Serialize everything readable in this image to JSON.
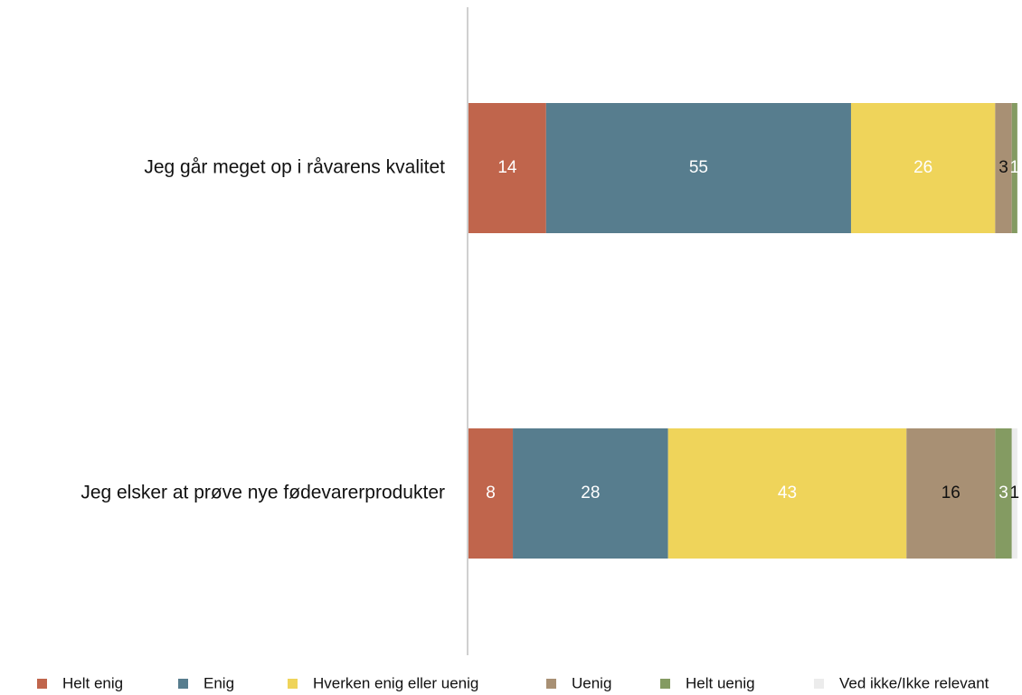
{
  "chart_data": {
    "type": "stacked_barh",
    "categories": [
      "Jeg går meget op i råvarens kvalitet",
      "Jeg elsker at prøve nye fødevarerprodukter"
    ],
    "series": [
      {
        "name": "Helt enig",
        "color": "#c0654c",
        "label_color": "#ffffff",
        "values": [
          14,
          8
        ]
      },
      {
        "name": "Enig",
        "color": "#577d8e",
        "label_color": "#ffffff",
        "values": [
          55,
          28
        ]
      },
      {
        "name": "Hverken enig eller uenig",
        "color": "#efd45a",
        "label_color": "#ffffff",
        "values": [
          26,
          43
        ]
      },
      {
        "name": "Uenig",
        "color": "#a89074",
        "label_color": "#111111",
        "values": [
          3,
          16
        ]
      },
      {
        "name": "Helt uenig",
        "color": "#849b62",
        "label_color": "#ffffff",
        "values": [
          1,
          3
        ]
      },
      {
        "name": "Ved ikke/Ikke relevant",
        "color": "#ececec",
        "label_color": "#111111",
        "values": [
          0,
          1
        ]
      }
    ],
    "xlim": [
      0,
      100
    ],
    "legend": "bottom"
  }
}
